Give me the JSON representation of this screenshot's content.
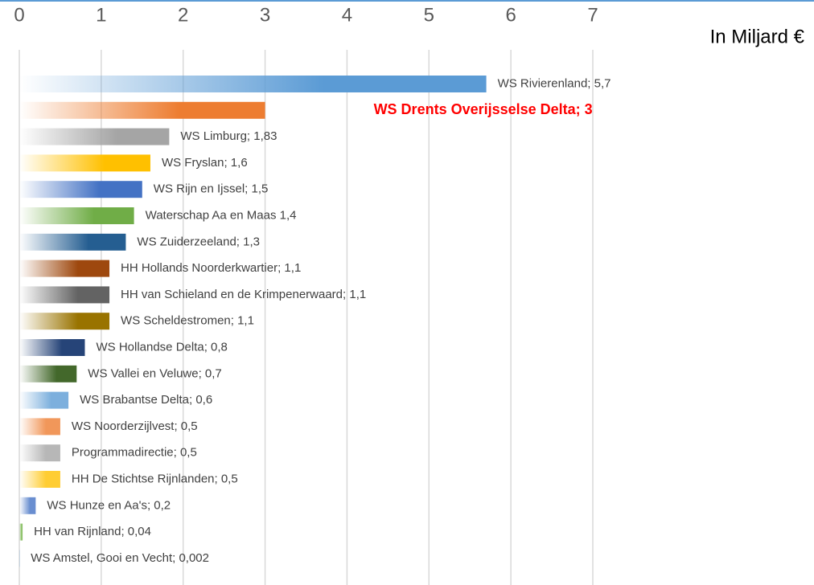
{
  "chart_data": {
    "type": "bar",
    "orientation": "horizontal",
    "x_label": "In Miljard €",
    "values": [
      5.7,
      3,
      1.83,
      1.6,
      1.5,
      1.4,
      1.3,
      1.1,
      1.1,
      1.1,
      0.8,
      0.7,
      0.6,
      0.5,
      0.5,
      0.5,
      0.2,
      0.04,
      0.002
    ],
    "value_labels": [
      "WS Rivierenland; 5,7",
      "WS Drents Overijsselse Delta; 3",
      "WS Limburg; 1,83",
      "WS Fryslan; 1,6",
      "WS Rijn en Ijssel; 1,5",
      "Waterschap Aa en Maas 1,4",
      "WS Zuiderzeeland; 1,3",
      "HH Hollands Noorderkwartier; 1,1",
      "HH van Schieland en de Krimpenerwaard; 1,1",
      "WS Scheldestromen; 1,1",
      "WS Hollandse Delta; 0,8",
      "WS Vallei en Veluwe; 0,7",
      "WS Brabantse Delta; 0,6",
      "WS Noorderzijlvest; 0,5",
      "Programmadirectie; 0,5",
      "HH De Stichtse Rijnlanden; 0,5",
      "WS Hunze en Aa's; 0,2",
      "HH van Rijnland; 0,04",
      "WS Amstel, Gooi en Vecht; 0,002"
    ],
    "colors": [
      "#5b9bd5",
      "#ed7d31",
      "#a5a5a5",
      "#ffc000",
      "#4472c4",
      "#70ad47",
      "#255e91",
      "#9e480e",
      "#636363",
      "#997300",
      "#264478",
      "#43682b",
      "#7cafdd",
      "#f1975a",
      "#b7b7b7",
      "#ffcd33",
      "#698ed0",
      "#8cc168",
      "#5b9bd5"
    ],
    "highlight_index": 1,
    "highlight_color": "#ff0000",
    "xlim": [
      0,
      7
    ],
    "xticks": [
      0,
      1,
      2,
      3,
      4,
      5,
      6,
      7
    ],
    "grid": true
  }
}
